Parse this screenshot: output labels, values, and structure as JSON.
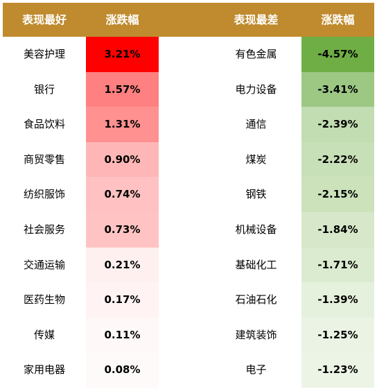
{
  "header": {
    "best_label": "表现最好",
    "change_label_1": "涨跌幅",
    "worst_label": "表现最差",
    "change_label_2": "涨跌幅"
  },
  "best": [
    {
      "name": "美容护理",
      "change": "3.21%",
      "color": "#ff0000"
    },
    {
      "name": "银行",
      "change": "1.57%",
      "color": "#ff8080"
    },
    {
      "name": "食品饮料",
      "change": "1.31%",
      "color": "#ff9191"
    },
    {
      "name": "商贸零售",
      "change": "0.90%",
      "color": "#ffb6b6"
    },
    {
      "name": "纺织服饰",
      "change": "0.74%",
      "color": "#ffc1c1"
    },
    {
      "name": "社会服务",
      "change": "0.73%",
      "color": "#ffc3c3"
    },
    {
      "name": "交通运输",
      "change": "0.21%",
      "color": "#fff0f0"
    },
    {
      "name": "医药生物",
      "change": "0.17%",
      "color": "#fff3f3"
    },
    {
      "name": "传媒",
      "change": "0.11%",
      "color": "#fff8f8"
    },
    {
      "name": "家用电器",
      "change": "0.08%",
      "color": "#fffafa"
    }
  ],
  "worst": [
    {
      "name": "有色金属",
      "change": "-4.57%",
      "color": "#6fae45"
    },
    {
      "name": "电力设备",
      "change": "-3.41%",
      "color": "#9cc884"
    },
    {
      "name": "通信",
      "change": "-2.39%",
      "color": "#c2ddb1"
    },
    {
      "name": "煤炭",
      "change": "-2.22%",
      "color": "#c8e0b8"
    },
    {
      "name": "钢铁",
      "change": "-2.15%",
      "color": "#cbe2bb"
    },
    {
      "name": "机械设备",
      "change": "-1.84%",
      "color": "#d6e8c9"
    },
    {
      "name": "基础化工",
      "change": "-1.71%",
      "color": "#dbebcf"
    },
    {
      "name": "石油石化",
      "change": "-1.39%",
      "color": "#e6f1dd"
    },
    {
      "name": "建筑装饰",
      "change": "-1.25%",
      "color": "#ebf4e4"
    },
    {
      "name": "电子",
      "change": "-1.23%",
      "color": "#ecf4e5"
    }
  ]
}
